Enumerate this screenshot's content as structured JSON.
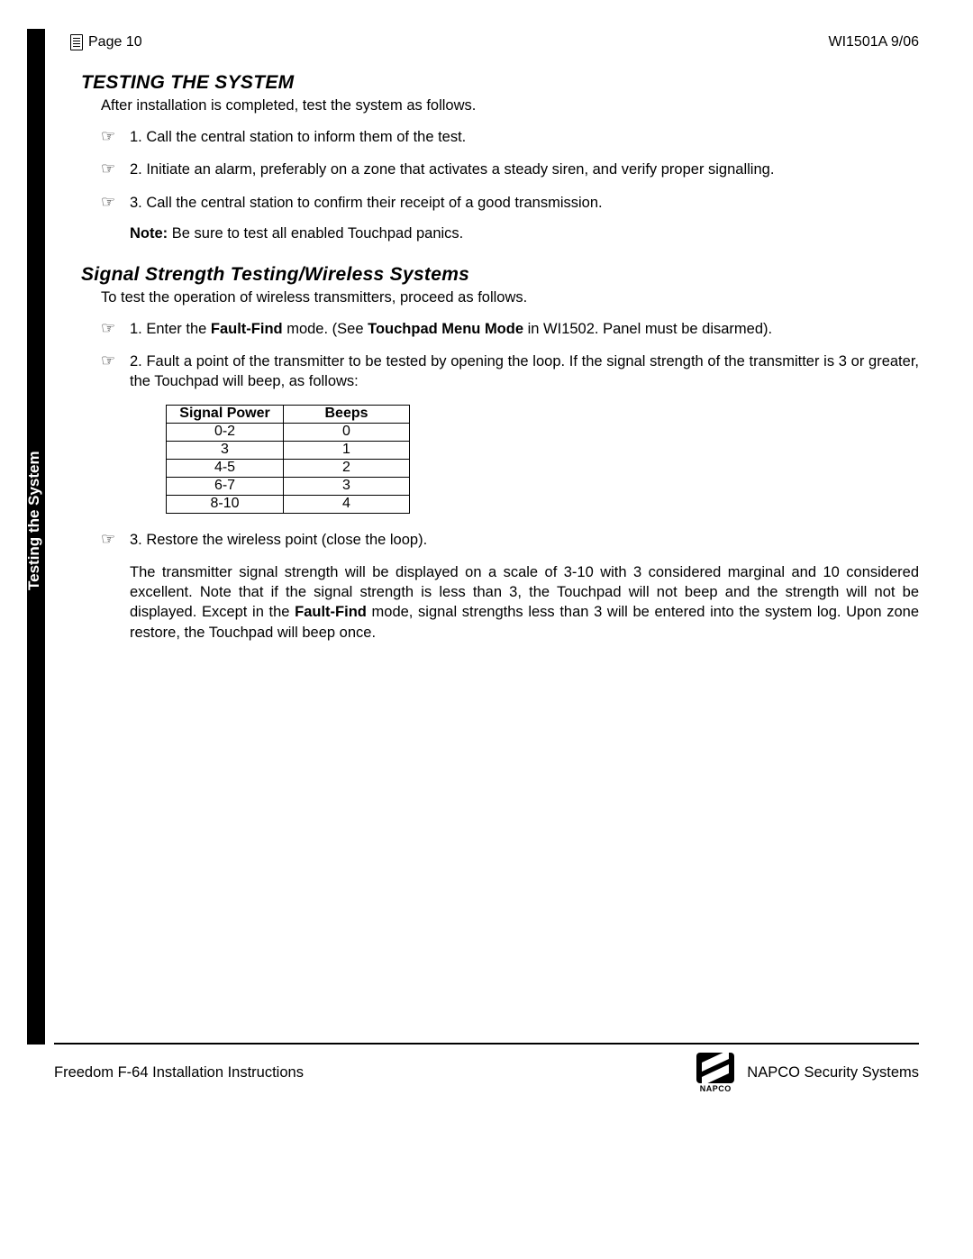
{
  "header": {
    "page_label": "Page 10",
    "doc_code": "WI1501A  9/06"
  },
  "side_tab": "Testing the System",
  "section1": {
    "title": "TESTING THE SYSTEM",
    "intro": "After installation is completed, test the system as follows.",
    "steps": [
      "1.  Call the central station to inform them of the test.",
      "2.  Initiate an alarm, preferably on a zone that activates a steady siren, and verify proper signalling.",
      "3.  Call the central station to confirm their receipt of a good transmission."
    ],
    "note_label": "Note:",
    "note_text": "  Be sure to test all enabled Touchpad panics."
  },
  "section2": {
    "title": "Signal Strength Testing/Wireless Systems",
    "intro": "To test the operation of wireless transmitters, proceed as follows.",
    "step1_pre": "1.  Enter the ",
    "step1_b1": "Fault-Find",
    "step1_mid": " mode.  (See ",
    "step1_b2": "Touchpad Menu Mode",
    "step1_post": " in WI1502.  Panel must be disarmed).",
    "step2": "2. Fault a point of the transmitter to be tested by opening the loop.  If the signal strength of the transmitter is 3 or greater, the Touchpad will beep, as follows:",
    "table": {
      "columns": [
        "Signal Power",
        "Beeps"
      ],
      "rows": [
        [
          "0-2",
          "0"
        ],
        [
          "3",
          "1"
        ],
        [
          "4-5",
          "2"
        ],
        [
          "6-7",
          "3"
        ],
        [
          "8-10",
          "4"
        ]
      ]
    },
    "step3": "3.  Restore the wireless point (close the loop).",
    "para_pre": "The transmitter signal strength will be displayed on a scale of 3-10 with 3 considered marginal and 10 considered excellent.  Note that if the signal strength is less than 3, the Touchpad will not beep and the strength will not be displayed.  Except in the ",
    "para_b": "Fault-Find",
    "para_post": " mode, signal strengths less than 3 will be entered into the system log.  Upon zone restore, the Touchpad will beep once."
  },
  "footer": {
    "left": "Freedom F-64 Installation Instructions",
    "right": "NAPCO Security Systems",
    "logo_text": "NAPCO"
  }
}
